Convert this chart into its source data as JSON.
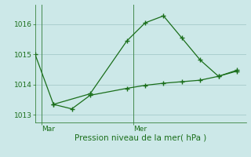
{
  "xlabel": "Pression niveau de la mer( hPa )",
  "bg_color": "#cce8e8",
  "line_color": "#1a6e1a",
  "grid_color": "#aacece",
  "tick_label_color": "#1a6e1a",
  "xlabel_color": "#1a6e1a",
  "line1_x": [
    0,
    1,
    3,
    5,
    6,
    7,
    8,
    9,
    10,
    11
  ],
  "line1_y": [
    1015.0,
    1013.35,
    1013.7,
    1015.45,
    1016.05,
    1016.28,
    1015.55,
    1014.82,
    1014.28,
    1014.48
  ],
  "line2_x": [
    1,
    2,
    3,
    5,
    6,
    7,
    8,
    9,
    10,
    11
  ],
  "line2_y": [
    1013.35,
    1013.2,
    1013.65,
    1013.88,
    1013.98,
    1014.05,
    1014.1,
    1014.15,
    1014.28,
    1014.45
  ],
  "xtick_positions": [
    0.35,
    5.35
  ],
  "xtick_labels": [
    "Mar",
    "Mer"
  ],
  "vline_x": [
    0.35,
    5.35
  ],
  "ylim": [
    1012.75,
    1016.65
  ],
  "xlim": [
    0,
    11.5
  ],
  "ytick_positions": [
    1013,
    1014,
    1015,
    1016
  ],
  "ytick_labels": [
    "1013",
    "1014",
    "1015",
    "1016"
  ]
}
